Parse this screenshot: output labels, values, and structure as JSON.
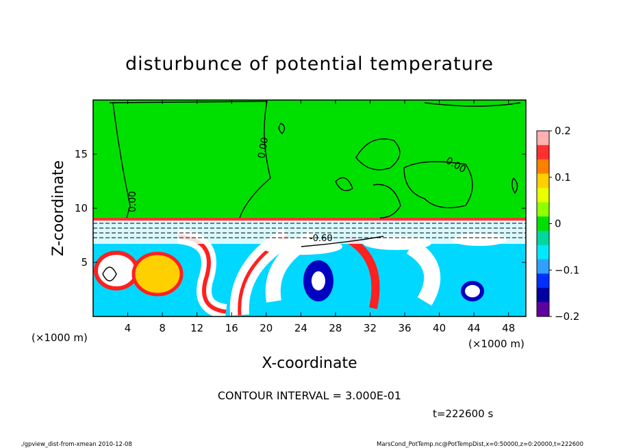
{
  "chart_data": {
    "type": "heatmap",
    "title": "disturbunce of potential temperature",
    "xlabel": "X-coordinate",
    "ylabel": "Z-coordinate",
    "x_unit": "(×1000 m)",
    "y_unit": "(×1000 m)",
    "xlim": [
      0,
      50
    ],
    "ylim": [
      0,
      20
    ],
    "x_ticks": [
      4,
      8,
      12,
      16,
      20,
      24,
      28,
      32,
      36,
      40,
      44,
      48
    ],
    "y_ticks": [
      5,
      10,
      15
    ],
    "colorbar": {
      "range": [
        -0.2,
        0.2
      ],
      "tick_values": [
        0.2,
        0.1,
        0,
        -0.1,
        -0.2
      ],
      "tick_labels": [
        "0.2",
        "0.1",
        "0",
        "−0.1",
        "−0.2"
      ],
      "colors": [
        "#ffb0b0",
        "#ff3030",
        "#ff8000",
        "#ffd000",
        "#e8ff00",
        "#90ff00",
        "#00e000",
        "#00d8a0",
        "#00e8ff",
        "#30a0ff",
        "#0030ff",
        "#0000a0",
        "#6000a0"
      ]
    },
    "contour_labels": [
      "0.00",
      "0.00",
      "0.00",
      "-0.60"
    ],
    "contour_interval": "CONTOUR INTERVAL = 3.000E-01",
    "time": "t=222600 s",
    "grid": false
  },
  "footer": {
    "left": "./gpview_dist-from-xmean  2010-12-08",
    "right": "MarsCond_PotTemp.nc@PotTempDist,x=0:50000,z=0:20000,t=222600"
  }
}
